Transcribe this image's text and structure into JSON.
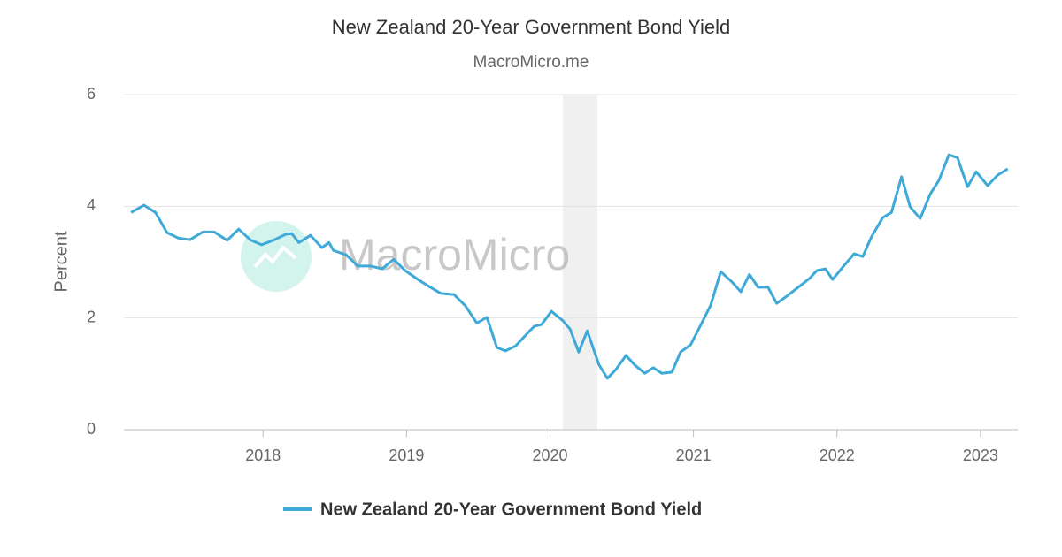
{
  "chart_data": {
    "type": "line",
    "title": "New Zealand 20-Year Government Bond Yield",
    "subtitle": "MacroMicro.me",
    "watermark": "MacroMicro",
    "y_label": "Percent",
    "x": [
      2017.08,
      2017.17,
      2017.25,
      2017.33,
      2017.41,
      2017.49,
      2017.58,
      2017.66,
      2017.75,
      2017.83,
      2017.91,
      2017.99,
      2018.08,
      2018.16,
      2018.2,
      2018.25,
      2018.33,
      2018.41,
      2018.46,
      2018.49,
      2018.58,
      2018.66,
      2018.75,
      2018.83,
      2018.91,
      2018.99,
      2019.08,
      2019.16,
      2019.24,
      2019.33,
      2019.41,
      2019.49,
      2019.56,
      2019.63,
      2019.69,
      2019.76,
      2019.84,
      2019.89,
      2019.94,
      2020.01,
      2020.09,
      2020.14,
      2020.2,
      2020.26,
      2020.34,
      2020.4,
      2020.46,
      2020.53,
      2020.59,
      2020.66,
      2020.72,
      2020.78,
      2020.85,
      2020.91,
      2020.98,
      2021.04,
      2021.12,
      2021.19,
      2021.27,
      2021.33,
      2021.39,
      2021.45,
      2021.52,
      2021.58,
      2021.65,
      2021.73,
      2021.81,
      2021.86,
      2021.92,
      2021.97,
      2022.05,
      2022.12,
      2022.18,
      2022.24,
      2022.32,
      2022.38,
      2022.45,
      2022.51,
      2022.58,
      2022.65,
      2022.71,
      2022.78,
      2022.84,
      2022.91,
      2022.97,
      2023.05,
      2023.12,
      2023.19
    ],
    "series": [
      {
        "name": "New Zealand 20-Year Government Bond Yield",
        "color": "#3fa9d8",
        "values": [
          3.89,
          4.02,
          3.89,
          3.53,
          3.43,
          3.4,
          3.54,
          3.54,
          3.39,
          3.59,
          3.4,
          3.31,
          3.4,
          3.5,
          3.51,
          3.35,
          3.48,
          3.26,
          3.35,
          3.21,
          3.13,
          2.93,
          2.93,
          2.88,
          3.05,
          2.85,
          2.69,
          2.56,
          2.44,
          2.42,
          2.22,
          1.91,
          2.01,
          1.47,
          1.41,
          1.5,
          1.72,
          1.85,
          1.88,
          2.12,
          1.95,
          1.8,
          1.39,
          1.77,
          1.17,
          0.92,
          1.08,
          1.33,
          1.16,
          1.01,
          1.11,
          1.01,
          1.03,
          1.39,
          1.52,
          1.82,
          2.23,
          2.83,
          2.64,
          2.47,
          2.78,
          2.55,
          2.55,
          2.26,
          2.39,
          2.55,
          2.71,
          2.85,
          2.88,
          2.69,
          2.94,
          3.15,
          3.1,
          3.45,
          3.8,
          3.89,
          4.53,
          3.99,
          3.78,
          4.22,
          4.46,
          4.92,
          4.87,
          4.35,
          4.62,
          4.37,
          4.56,
          4.67
        ]
      }
    ],
    "shaded": [
      {
        "from": 2020.09,
        "to": 2020.33
      }
    ],
    "xlim": [
      2017.03,
      2023.26
    ],
    "xticks": [
      2018,
      2019,
      2020,
      2021,
      2022,
      2023
    ],
    "ylim": [
      0,
      6
    ],
    "yticks": [
      0,
      2,
      4,
      6
    ],
    "grid": true,
    "legend": "bottom"
  }
}
